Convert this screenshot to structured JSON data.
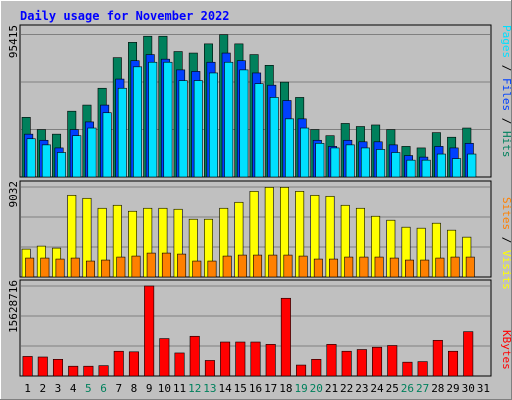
{
  "title": "Daily usage for November 2022",
  "colors": {
    "background": "#c0c0c0",
    "title": "#0000ff",
    "panel_border": "#000000",
    "gridline": "#808080",
    "hits": "#00805c",
    "files": "#0040ff",
    "pages": "#00e0ff",
    "visits": "#ffff00",
    "sites": "#ff8000",
    "kbytes": "#ff0000",
    "weekend_label": "#00805c",
    "weekday_label": "#000000"
  },
  "legends": {
    "hits_files_pages": {
      "pages": "Pages",
      "sep1": " / ",
      "files": "Files",
      "sep2": " / ",
      "hits": "Hits"
    },
    "visits_sites": {
      "sites": "Sites",
      "sep": " / ",
      "visits": "Visits"
    },
    "kbytes": {
      "kbytes": "KBytes"
    }
  },
  "panel_max_labels": {
    "hits": "95415",
    "visits": "9032",
    "kbytes": "15628716"
  },
  "chart_data": {
    "type": "bar",
    "x": [
      "1",
      "2",
      "3",
      "4",
      "5",
      "6",
      "7",
      "8",
      "9",
      "10",
      "11",
      "12",
      "13",
      "14",
      "15",
      "16",
      "17",
      "18",
      "19",
      "20",
      "21",
      "22",
      "23",
      "24",
      "25",
      "26",
      "27",
      "28",
      "29",
      "30",
      "31"
    ],
    "weekend_days": [
      "5",
      "6",
      "12",
      "13",
      "19",
      "20",
      "26",
      "27"
    ],
    "panels": [
      {
        "name": "hits_files_pages",
        "ymax": 95415,
        "series": [
          {
            "name": "Hits",
            "values": [
              39000,
              31000,
              28000,
              43000,
              47000,
              58000,
              78000,
              88000,
              92000,
              92000,
              82000,
              81000,
              87000,
              93000,
              87000,
              80000,
              73000,
              62000,
              52000,
              31000,
              27000,
              35000,
              33000,
              34000,
              31000,
              20000,
              19000,
              29000,
              26000,
              32000,
              0
            ]
          },
          {
            "name": "Files",
            "values": [
              28000,
              24000,
              19000,
              31000,
              36000,
              47000,
              64000,
              76000,
              80000,
              77000,
              70000,
              69000,
              75000,
              81000,
              76000,
              68000,
              60000,
              50000,
              38000,
              24000,
              20000,
              24000,
              23000,
              23000,
              21000,
              14000,
              13000,
              20000,
              19000,
              22000,
              0
            ]
          },
          {
            "name": "Pages",
            "values": [
              25000,
              21000,
              16000,
              27000,
              32000,
              42000,
              58000,
              72000,
              75000,
              75000,
              63000,
              63000,
              68000,
              75000,
              70000,
              61000,
              52000,
              38000,
              32000,
              22000,
              19000,
              21000,
              19000,
              18000,
              16000,
              11000,
              11000,
              15000,
              12000,
              15000,
              0
            ]
          }
        ]
      },
      {
        "name": "visits_sites",
        "ymax": 9032,
        "series": [
          {
            "name": "Visits",
            "values": [
              2800,
              3100,
              2900,
              8200,
              7900,
              6900,
              7200,
              6600,
              6900,
              6900,
              6800,
              5800,
              5800,
              6900,
              7500,
              8600,
              9000,
              9000,
              8600,
              8200,
              8100,
              7200,
              6900,
              6100,
              5700,
              5000,
              4900,
              5400,
              4700,
              4000,
              0
            ]
          },
          {
            "name": "Sites",
            "values": [
              1900,
              1900,
              1800,
              1900,
              1600,
              1700,
              2000,
              2100,
              2400,
              2400,
              2300,
              1600,
              1600,
              2100,
              2200,
              2200,
              2200,
              2200,
              2100,
              1800,
              1800,
              2000,
              2000,
              2000,
              1900,
              1700,
              1700,
              1900,
              2000,
              2000,
              0
            ]
          }
        ]
      },
      {
        "name": "kbytes",
        "ymax": 15628716,
        "series": [
          {
            "name": "KBytes",
            "values": [
              3400000,
              3300000,
              2900000,
              1700000,
              1700000,
              1800000,
              4300000,
              4200000,
              15628716,
              6500000,
              4000000,
              6900000,
              2700000,
              5900000,
              5900000,
              5900000,
              5500000,
              13500000,
              1900000,
              2900000,
              5500000,
              4300000,
              4600000,
              5000000,
              5300000,
              2400000,
              2500000,
              6200000,
              4300000,
              7700000,
              0
            ]
          }
        ]
      }
    ]
  }
}
